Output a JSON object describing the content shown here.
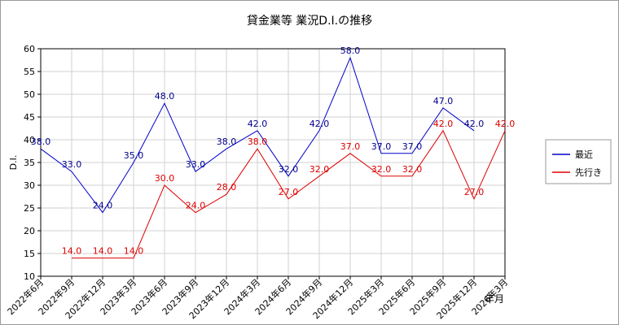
{
  "chart_data": {
    "type": "line",
    "title": "貸金業等 業況D.I.の推移",
    "y_label": "D.I.",
    "x_label": "年月",
    "categories": [
      "2022年6月",
      "2022年9月",
      "2022年12月",
      "2023年3月",
      "2023年6月",
      "2023年9月",
      "2023年12月",
      "2024年3月",
      "2024年6月",
      "2024年9月",
      "2024年12月",
      "2025年3月",
      "2025年6月",
      "2025年9月",
      "2025年12月",
      "2026年3月"
    ],
    "series": [
      {
        "name": "最近",
        "color": "#0000cc",
        "label_color": "#00008b",
        "values": [
          38,
          33,
          24,
          35,
          48,
          33,
          38,
          42,
          32,
          42,
          58,
          37,
          37,
          47,
          42,
          null
        ],
        "value_labels": [
          "38.0",
          "33.0",
          "24.0",
          "35.0",
          "48.0",
          "33.0",
          "38.0",
          "42.0",
          "32.0",
          "42.0",
          "58.0",
          "37.0",
          "37.0",
          "47.0",
          "42.0",
          null
        ]
      },
      {
        "name": "先行き",
        "color": "#dd0000",
        "label_color": "#dd0000",
        "values": [
          null,
          14,
          14,
          14,
          30,
          24,
          28,
          38,
          27,
          32,
          37,
          32,
          32,
          42,
          27,
          42
        ],
        "value_labels": [
          null,
          "14.0",
          "14.0",
          "14.0",
          "30.0",
          "24.0",
          "28.0",
          "38.0",
          "27.0",
          "32.0",
          "37.0",
          "32.0",
          "32.0",
          "42.0",
          "27.0",
          "42.0"
        ]
      }
    ],
    "ylim": [
      10,
      60
    ],
    "yticks": [
      10,
      15,
      20,
      25,
      30,
      35,
      40,
      45,
      50,
      55,
      60
    ],
    "grid": true,
    "legend": "right"
  }
}
